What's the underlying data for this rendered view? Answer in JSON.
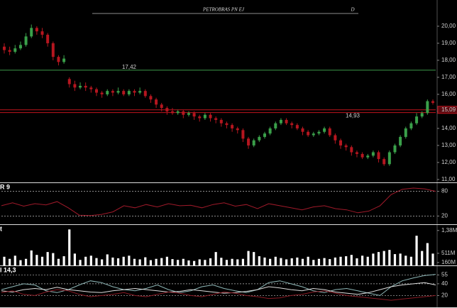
{
  "chart_data": [
    {
      "type": "candlestick",
      "title": "PETROBRAS PN EJ",
      "subtitle": "D",
      "open": [
        18.8,
        18.6,
        18.5,
        18.7,
        18.9,
        19.4,
        19.9,
        19.7,
        19.5,
        19.0,
        18.2,
        17.9,
        16.9,
        16.6,
        16.4,
        16.5,
        16.4,
        16.3,
        16.1,
        16.0,
        16.2,
        16.1,
        16.2,
        16.0,
        16.2,
        16.1,
        16.2,
        15.9,
        15.7,
        15.4,
        15.2,
        15.0,
        14.9,
        15.0,
        14.8,
        14.9,
        14.7,
        14.6,
        14.8,
        14.6,
        14.5,
        14.3,
        14.2,
        14.0,
        13.9,
        13.4,
        13.0,
        13.3,
        13.5,
        13.7,
        14.0,
        14.3,
        14.5,
        14.3,
        14.2,
        14.0,
        13.8,
        13.6,
        13.7,
        13.8,
        14.0,
        13.6,
        13.3,
        13.0,
        12.9,
        12.6,
        12.5,
        12.3,
        12.4,
        12.6,
        12.2,
        11.9,
        12.6,
        13.0,
        13.5,
        14.0,
        14.3,
        14.7,
        14.9,
        15.6
      ],
      "high": [
        19.0,
        18.8,
        18.9,
        19.1,
        19.6,
        20.1,
        20.0,
        19.9,
        19.6,
        19.1,
        18.3,
        18.3,
        17.0,
        16.8,
        16.7,
        16.7,
        16.5,
        16.4,
        16.2,
        16.3,
        16.3,
        16.4,
        16.3,
        16.3,
        16.3,
        16.4,
        16.3,
        16.0,
        15.8,
        15.5,
        15.3,
        15.2,
        15.1,
        15.1,
        15.0,
        15.0,
        14.8,
        14.9,
        14.9,
        14.7,
        14.6,
        14.4,
        14.3,
        14.1,
        14.0,
        13.5,
        13.4,
        13.6,
        13.8,
        14.1,
        14.4,
        14.6,
        14.6,
        14.4,
        14.3,
        14.1,
        13.9,
        13.8,
        13.9,
        14.1,
        14.1,
        13.7,
        13.4,
        13.1,
        13.0,
        12.7,
        12.6,
        12.5,
        12.7,
        12.7,
        12.3,
        12.7,
        13.1,
        13.6,
        14.1,
        14.4,
        14.9,
        15.0,
        15.7,
        15.7
      ],
      "low": [
        18.4,
        18.3,
        18.4,
        18.6,
        18.8,
        19.3,
        19.5,
        19.3,
        18.8,
        18.0,
        17.7,
        17.8,
        16.4,
        16.2,
        16.3,
        16.2,
        16.1,
        15.9,
        15.8,
        15.9,
        15.9,
        16.0,
        15.9,
        15.9,
        15.9,
        16.0,
        15.8,
        15.5,
        15.2,
        15.0,
        14.8,
        14.8,
        14.8,
        14.6,
        14.7,
        14.5,
        14.4,
        14.5,
        14.4,
        14.3,
        14.1,
        14.0,
        13.8,
        13.7,
        13.2,
        12.8,
        12.9,
        13.2,
        13.4,
        13.6,
        13.9,
        14.2,
        14.2,
        14.0,
        13.9,
        13.6,
        13.5,
        13.5,
        13.6,
        13.7,
        13.5,
        13.1,
        12.8,
        12.7,
        12.4,
        12.3,
        12.2,
        12.2,
        12.3,
        12.0,
        11.8,
        11.8,
        12.5,
        12.9,
        13.4,
        13.9,
        14.2,
        14.6,
        14.8,
        15.4
      ],
      "close": [
        18.6,
        18.5,
        18.7,
        18.9,
        19.4,
        19.9,
        19.7,
        19.5,
        19.0,
        18.2,
        17.9,
        18.1,
        16.6,
        16.4,
        16.5,
        16.4,
        16.3,
        16.1,
        16.0,
        16.2,
        16.1,
        16.2,
        16.0,
        16.2,
        16.1,
        16.2,
        15.9,
        15.7,
        15.4,
        15.2,
        15.0,
        14.9,
        15.0,
        14.8,
        14.9,
        14.7,
        14.6,
        14.8,
        14.6,
        14.5,
        14.3,
        14.2,
        14.0,
        13.9,
        13.4,
        13.0,
        13.3,
        13.5,
        13.7,
        14.0,
        14.3,
        14.5,
        14.3,
        14.2,
        14.0,
        13.8,
        13.6,
        13.7,
        13.8,
        14.0,
        13.6,
        13.3,
        13.0,
        12.9,
        12.6,
        12.5,
        12.3,
        12.4,
        12.6,
        12.2,
        11.9,
        12.6,
        13.0,
        13.5,
        14.0,
        14.3,
        14.7,
        14.9,
        15.6,
        15.5
      ],
      "up_color": "#3aa04a",
      "down_color": "#b5161f",
      "ylim": [
        10.83,
        21.54
      ],
      "yticks": [
        {
          "value": 11,
          "label": "11,00"
        },
        {
          "value": 12,
          "label": "12,00"
        },
        {
          "value": 13,
          "label": "13,00"
        },
        {
          "value": 14,
          "label": "14,00"
        },
        {
          "value": 15,
          "label": "15,00"
        },
        {
          "value": 16,
          "label": "16,00"
        },
        {
          "value": 17,
          "label": "17,00"
        },
        {
          "value": 18,
          "label": "18,00"
        },
        {
          "value": 19,
          "label": "19,00"
        },
        {
          "value": 20,
          "label": "20,00"
        }
      ],
      "grid": false,
      "levels": [
        {
          "value": 17.42,
          "label": "17,42",
          "color": "#3c9a4a"
        },
        {
          "value": 15.09,
          "label": "15,09",
          "color": "#c0141e"
        },
        {
          "value": 14.93,
          "label": "14,93",
          "color": "#c0141e"
        }
      ]
    },
    {
      "type": "line",
      "title": "R 9",
      "ylim": [
        0,
        100
      ],
      "yticks": [
        20,
        80
      ],
      "grid": true,
      "series": [
        {
          "color": "#a01a2a",
          "values": [
            45,
            52,
            44,
            50,
            47,
            55,
            40,
            22,
            21,
            24,
            30,
            45,
            40,
            48,
            42,
            50,
            45,
            46,
            40,
            48,
            52,
            44,
            48,
            38,
            50,
            45,
            40,
            35,
            42,
            45,
            38,
            35,
            28,
            32,
            45,
            72,
            85,
            88,
            86,
            80
          ]
        }
      ]
    },
    {
      "type": "bar",
      "title": "t",
      "color": "#ffffff",
      "ylim": [
        50,
        1590
      ],
      "yticks": [
        {
          "value": 160,
          "label": "160M"
        },
        {
          "value": 511,
          "label": "511M"
        },
        {
          "value": 1380,
          "label": "1,38M"
        }
      ],
      "grid": false,
      "values": [
        380,
        300,
        420,
        250,
        300,
        620,
        450,
        380,
        560,
        520,
        300,
        400,
        1420,
        500,
        260,
        380,
        420,
        330,
        280,
        470,
        350,
        320,
        380,
        420,
        300,
        280,
        360,
        250,
        300,
        330,
        380,
        290,
        260,
        300,
        240,
        220,
        280,
        260,
        320,
        560,
        340,
        260,
        300,
        280,
        300,
        600,
        560,
        400,
        350,
        300,
        380,
        330,
        280,
        320,
        350,
        300,
        380,
        260,
        300,
        330,
        290,
        350,
        380,
        400,
        450,
        320,
        420,
        380,
        500,
        560,
        600,
        640,
        480,
        500,
        420,
        380,
        1180,
        600,
        900,
        500
      ]
    },
    {
      "type": "line",
      "title": "I 14,3",
      "ylim": [
        0,
        70
      ],
      "yticks": [
        20,
        40,
        55
      ],
      "grid": true,
      "series": [
        {
          "color": "#8fb8b8",
          "values": [
            30,
            35,
            40,
            38,
            28,
            25,
            30,
            38,
            45,
            42,
            35,
            30,
            28,
            32,
            38,
            30,
            25,
            28,
            35,
            38,
            32,
            28,
            25,
            30,
            42,
            45,
            40,
            35,
            28,
            25,
            30,
            32,
            28,
            24,
            20,
            35,
            45,
            50,
            54,
            56
          ]
        },
        {
          "color": "#dddddd",
          "values": [
            28,
            26,
            30,
            32,
            30,
            34,
            30,
            28,
            26,
            25,
            28,
            30,
            32,
            30,
            28,
            26,
            27,
            30,
            28,
            26,
            24,
            25,
            27,
            30,
            35,
            33,
            30,
            28,
            32,
            30,
            26,
            24,
            22,
            25,
            30,
            35,
            38,
            40,
            42,
            38
          ]
        },
        {
          "color": "#8a1a24",
          "values": [
            25,
            28,
            22,
            20,
            26,
            30,
            28,
            22,
            18,
            20,
            22,
            25,
            20,
            18,
            22,
            26,
            24,
            20,
            18,
            22,
            26,
            24,
            20,
            18,
            15,
            16,
            20,
            22,
            26,
            28,
            24,
            20,
            18,
            16,
            14,
            12,
            14,
            16,
            18,
            20
          ]
        }
      ]
    }
  ]
}
